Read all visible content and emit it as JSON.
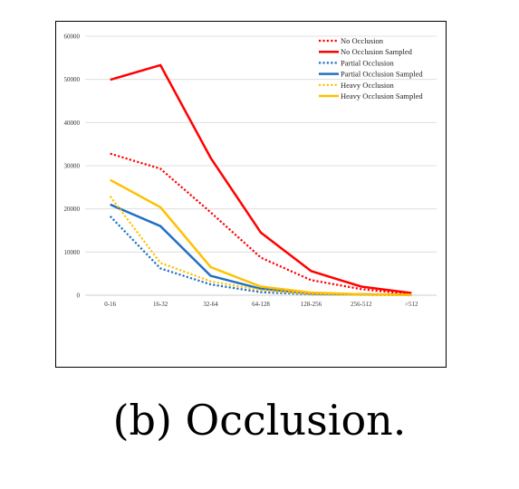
{
  "caption": "(b) Occlusion.",
  "chart_data": {
    "type": "line",
    "categories": [
      "0-16",
      "16-32",
      "32-64",
      "64-128",
      "128-256",
      "256-512",
      ">512"
    ],
    "ylim": [
      0,
      60000
    ],
    "yticks": [
      "0",
      "10000",
      "20000",
      "30000",
      "40000",
      "50000",
      "60000"
    ],
    "ytick_values": [
      0,
      10000,
      20000,
      30000,
      40000,
      50000,
      60000
    ],
    "grid": "horizontal",
    "legend_position": "top-right",
    "series": [
      {
        "name": "No Occlusion",
        "color": "#ff0000",
        "style": "dotted",
        "values": [
          32800,
          29300,
          19200,
          8700,
          3500,
          1400,
          200
        ]
      },
      {
        "name": "No Occlusion Sampled",
        "color": "#ff0000",
        "style": "solid",
        "values": [
          49900,
          53300,
          31800,
          14500,
          5600,
          2000,
          500
        ]
      },
      {
        "name": "Partial Occlusion",
        "color": "#1f6fc6",
        "style": "dotted",
        "values": [
          18300,
          6200,
          2500,
          700,
          200,
          100,
          0
        ]
      },
      {
        "name": "Partial Occlusion Sampled",
        "color": "#1f6fc6",
        "style": "solid",
        "values": [
          21000,
          16000,
          4500,
          1500,
          400,
          200,
          100
        ]
      },
      {
        "name": "Heavy Occlusion",
        "color": "#ffc000",
        "style": "dotted",
        "values": [
          22900,
          7500,
          3200,
          1200,
          300,
          100,
          0
        ]
      },
      {
        "name": "Heavy Occlusion Sampled",
        "color": "#ffc000",
        "style": "solid",
        "values": [
          26700,
          20400,
          6500,
          2000,
          600,
          200,
          100
        ]
      }
    ]
  }
}
